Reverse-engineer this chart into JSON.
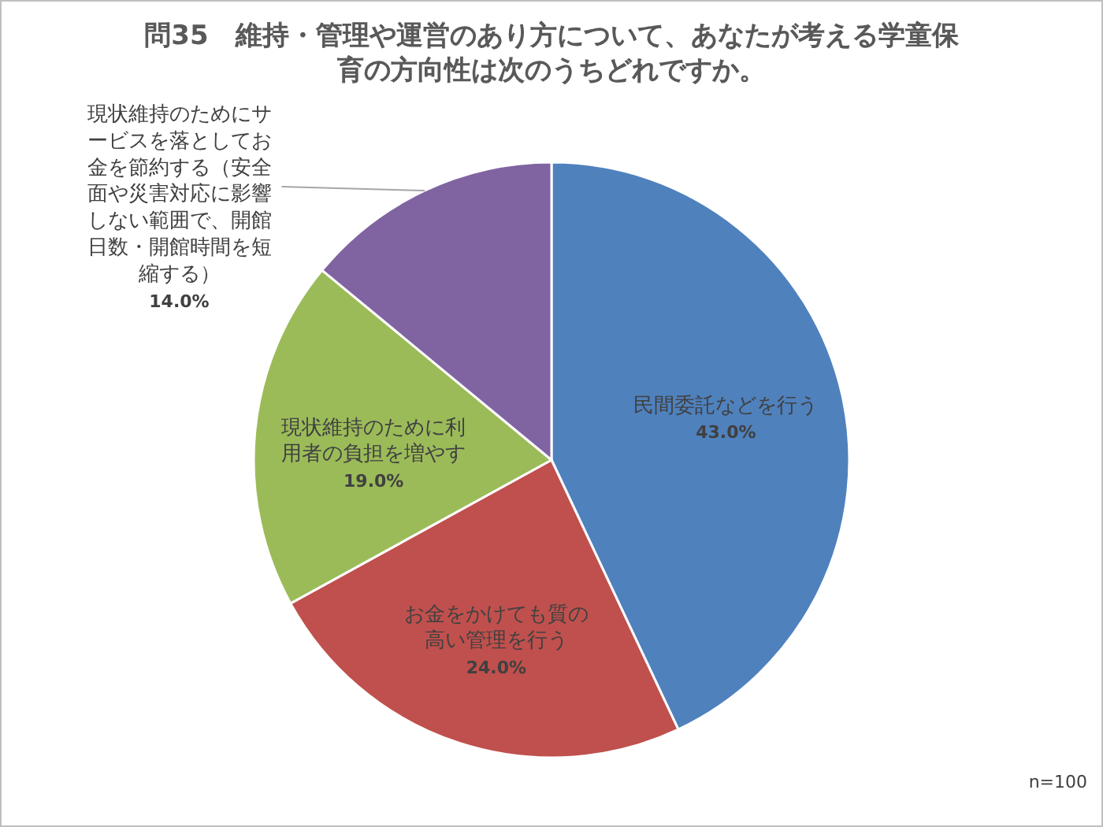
{
  "chart_data": {
    "type": "pie",
    "title": "問35　維持・管理や運営のあり方について、あなたが考える学童保育の方向性は次のうちどれですか。",
    "categories": [
      "民間委託などを行う",
      "お金をかけても質の高い管理を行う",
      "現状維持のために利用者の負担を増やす",
      "現状維持のためにサービスを落としてお金を節約する（安全面や災害対応に影響しない範囲で、開館日数・開館時間を短縮する）"
    ],
    "values": [
      43,
      24,
      19,
      14
    ],
    "value_labels": [
      "43.0%",
      "24.0%",
      "19.0%",
      "14.0%"
    ],
    "colors": [
      "#4f81bd",
      "#c0504d",
      "#9bbb59",
      "#8064a2"
    ],
    "annotations": [
      "n=100"
    ]
  }
}
